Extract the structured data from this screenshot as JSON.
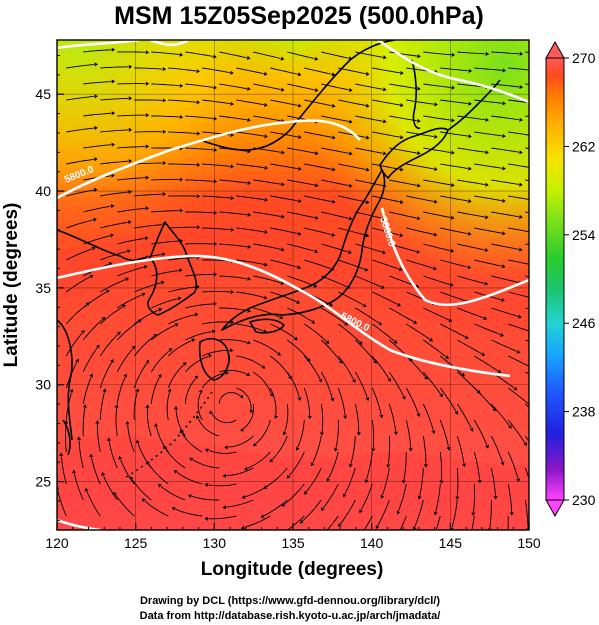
{
  "header": {
    "title": "MSM 15Z05Sep2025 (500.0hPa)"
  },
  "axes": {
    "xlabel": "Longitude (degrees)",
    "ylabel": "Latitude (degrees)",
    "xlim": [
      120,
      150
    ],
    "ylim": [
      22.5,
      47.8
    ],
    "xticks": [
      "120",
      "125",
      "130",
      "135",
      "140",
      "145",
      "150"
    ],
    "yticks": [
      "25",
      "30",
      "35",
      "40",
      "45"
    ]
  },
  "colorbar": {
    "min": 230,
    "max": 270,
    "ticks": [
      "270",
      "262",
      "254",
      "246",
      "238",
      "230"
    ],
    "colors": [
      "#ff44ff",
      "#8a16c8",
      "#2020e0",
      "#1f5cff",
      "#17a6ff",
      "#22d3d3",
      "#1cc46a",
      "#2bcc2b",
      "#7ae01a",
      "#c4f000",
      "#f5e400",
      "#ffb600",
      "#ff8000",
      "#ff4a1c",
      "#ff5a5a"
    ]
  },
  "contours": {
    "label": "5800.0"
  },
  "credits": {
    "line1": "Drawing by DCL (https://www.gfd-dennou.org/library/dcl/)",
    "line2": "Data from http://database.rish.kyoto-u.ac.jp/arch/jmadata/"
  }
}
